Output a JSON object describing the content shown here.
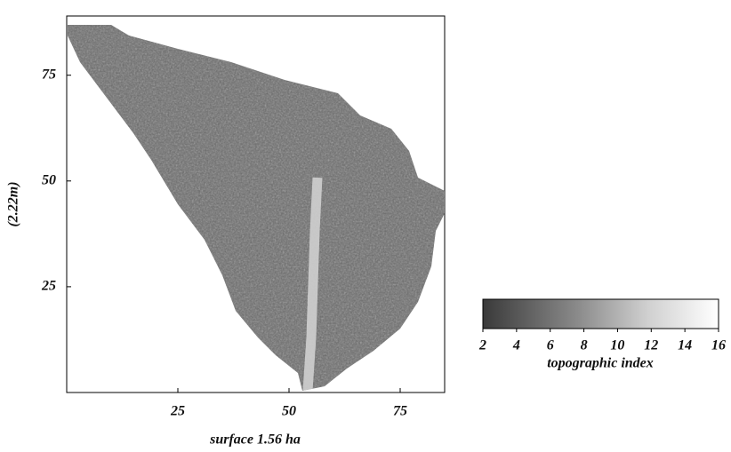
{
  "chart_data": {
    "type": "raster",
    "xlabel": "surface 1.56 ha",
    "ylabel": "(2.22m)",
    "xlim": [
      0,
      85
    ],
    "ylim": [
      0,
      89
    ],
    "xticks": [
      25,
      50,
      75
    ],
    "yticks": [
      25,
      50,
      75
    ],
    "colorbar": {
      "range": [
        2,
        16
      ],
      "ticks": [
        2,
        4,
        6,
        8,
        10,
        12,
        14,
        16
      ],
      "label": "topographic index"
    }
  }
}
